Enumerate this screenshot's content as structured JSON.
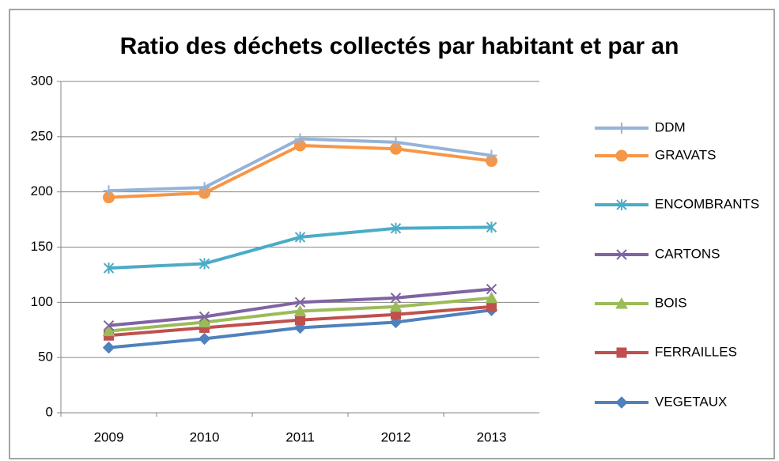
{
  "chart_data": {
    "type": "line",
    "title": "Ratio des déchets collectés par habitant et par an",
    "categories": [
      "2009",
      "2010",
      "2011",
      "2012",
      "2013"
    ],
    "series": [
      {
        "name": "DDM",
        "color": "#95b3d7",
        "marker": "plus",
        "values": [
          201,
          204,
          248,
          245,
          233
        ]
      },
      {
        "name": "GRAVATS",
        "color": "#f79646",
        "marker": "circle",
        "values": [
          195,
          199,
          242,
          239,
          228
        ]
      },
      {
        "name": "ENCOMBRANTS",
        "color": "#4bacc6",
        "marker": "star",
        "values": [
          131,
          135,
          159,
          167,
          168
        ]
      },
      {
        "name": "CARTONS",
        "color": "#8064a2",
        "marker": "x",
        "values": [
          79,
          87,
          100,
          104,
          112
        ]
      },
      {
        "name": "BOIS",
        "color": "#9bbb59",
        "marker": "triangle",
        "values": [
          74,
          82,
          92,
          96,
          104
        ]
      },
      {
        "name": "FERRAILLES",
        "color": "#c0504d",
        "marker": "square",
        "values": [
          70,
          77,
          84,
          89,
          96
        ]
      },
      {
        "name": "VEGETAUX",
        "color": "#4f81bd",
        "marker": "diamond",
        "values": [
          59,
          67,
          77,
          82,
          93
        ]
      }
    ],
    "ylim": [
      0,
      300
    ],
    "yticks": [
      0,
      50,
      100,
      150,
      200,
      250,
      300
    ],
    "grid": true,
    "legend": "right"
  }
}
